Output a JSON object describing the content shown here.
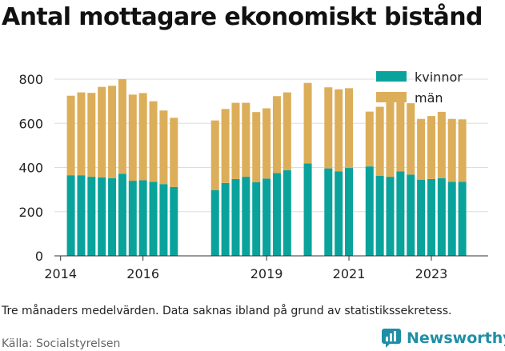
{
  "header": {
    "title": "Antal mottagare ekonomiskt bistånd"
  },
  "footer": {
    "caption": "Tre månaders medelvärden. Data saknas ibland på grund av statistikssekretess.",
    "source": "Källa: Socialstyrelsen",
    "brand": "Newsworthy"
  },
  "colors": {
    "kvinnor": "#0aa39b",
    "man": "#dcae5a",
    "grid": "#dddddd",
    "axis": "#333333",
    "brand": "#1f8fa6"
  },
  "chart_data": {
    "type": "bar",
    "stacked": true,
    "title": "Antal mottagare ekonomiskt bistånd",
    "xlabel": "",
    "ylabel": "",
    "ylim": [
      0,
      800
    ],
    "yticks": [
      0,
      200,
      400,
      600,
      800
    ],
    "grid": true,
    "legend": "top-right",
    "xaxis": {
      "ticks": [
        {
          "label": "2014",
          "x": 2014.0
        },
        {
          "label": "2016",
          "x": 2016.0
        },
        {
          "label": "2019",
          "x": 2019.0
        },
        {
          "label": "2021",
          "x": 2021.0
        },
        {
          "label": "2023",
          "x": 2023.0
        }
      ],
      "range": [
        2013.85,
        2024.38
      ]
    },
    "x": [
      2014.25,
      2014.5,
      2014.75,
      2015.0,
      2015.25,
      2015.5,
      2015.75,
      2016.0,
      2016.25,
      2016.5,
      2016.75,
      2017.0,
      2017.75,
      2018.0,
      2018.25,
      2018.5,
      2018.75,
      2019.0,
      2019.25,
      2019.5,
      2020.0,
      2020.5,
      2020.75,
      2021.0,
      2021.5,
      2021.75,
      2022.0,
      2022.25,
      2022.5,
      2022.75,
      2023.0,
      2023.25,
      2023.5,
      2023.75
    ],
    "series": [
      {
        "name": "kvinnor",
        "values": [
          365,
          365,
          358,
          355,
          352,
          372,
          340,
          342,
          335,
          325,
          312,
          0,
          298,
          330,
          348,
          358,
          333,
          350,
          375,
          388,
          418,
          396,
          382,
          398,
          405,
          362,
          358,
          382,
          368,
          345,
          348,
          352,
          335,
          335
        ]
      },
      {
        "name": "män",
        "values": [
          360,
          375,
          380,
          410,
          418,
          428,
          390,
          395,
          365,
          333,
          313,
          0,
          315,
          335,
          345,
          335,
          318,
          318,
          348,
          352,
          365,
          367,
          372,
          361,
          248,
          313,
          345,
          322,
          323,
          275,
          285,
          300,
          285,
          283
        ]
      }
    ]
  }
}
